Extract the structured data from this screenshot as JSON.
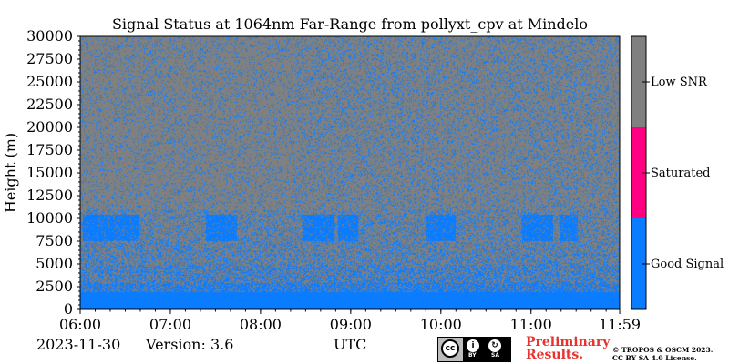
{
  "chart_data": {
    "type": "heatmap",
    "title": "Signal Status at 1064nm Far-Range from pollyxt_cpv at Mindelo",
    "xlabel": "UTC",
    "ylabel": "Height (m)",
    "x_ticks": [
      "06:00",
      "07:00",
      "08:00",
      "09:00",
      "10:00",
      "11:00",
      "11:59"
    ],
    "x_range_hours": [
      6.0,
      11.983
    ],
    "y_ticks": [
      0,
      2500,
      5000,
      7500,
      10000,
      12500,
      15000,
      17500,
      20000,
      22500,
      25000,
      27500,
      30000
    ],
    "ylim": [
      0,
      30000
    ],
    "colorbar": {
      "categories": [
        "Good Signal",
        "Saturated",
        "Low SNR"
      ],
      "colors": [
        "#0a7cff",
        "#ff0080",
        "#808080"
      ]
    },
    "features": {
      "good_signal_boundary_layer_top_m": 2500,
      "cloud_layer_m": [
        7500,
        10500
      ],
      "background": "Low SNR"
    }
  },
  "footer": {
    "date": "2023-11-30",
    "version": "Version: 3.6",
    "utc_label": "UTC",
    "preliminary_line1": "Preliminary",
    "preliminary_line2": "Results.",
    "copyright_line1": "© TROPOS & OSCM 2023.",
    "copyright_line2": "CC BY SA 4.0 License.",
    "cc_logo": {
      "cc": "cc",
      "by": "BY",
      "sa": "SA",
      "icon": "cc-by-sa-license-icon"
    }
  }
}
